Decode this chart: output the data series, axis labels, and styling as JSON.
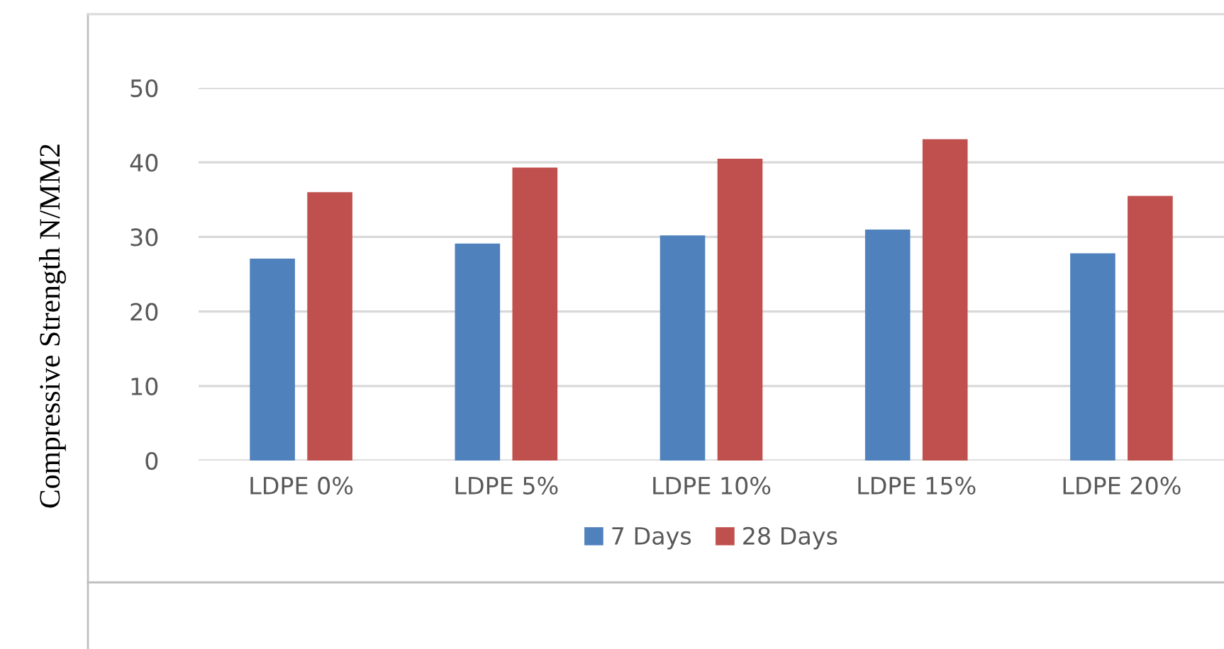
{
  "chart_data": {
    "type": "bar",
    "ylabel": "Compressive Strength N/MM2",
    "categories": [
      "LDPE 0%",
      "LDPE 5%",
      "LDPE 10%",
      "LDPE 15%",
      "LDPE 20%"
    ],
    "series": [
      {
        "name": "7 Days",
        "color": "#4f81bd",
        "values": [
          27.1,
          29.1,
          30.2,
          31.0,
          27.8
        ]
      },
      {
        "name": "28 Days",
        "color": "#c0504d",
        "values": [
          36.0,
          39.3,
          40.5,
          43.1,
          35.5
        ]
      }
    ],
    "ylim": [
      0,
      50
    ],
    "yticks": [
      0,
      10,
      20,
      30,
      40,
      50
    ],
    "grid": "y",
    "legend": "bottom"
  }
}
